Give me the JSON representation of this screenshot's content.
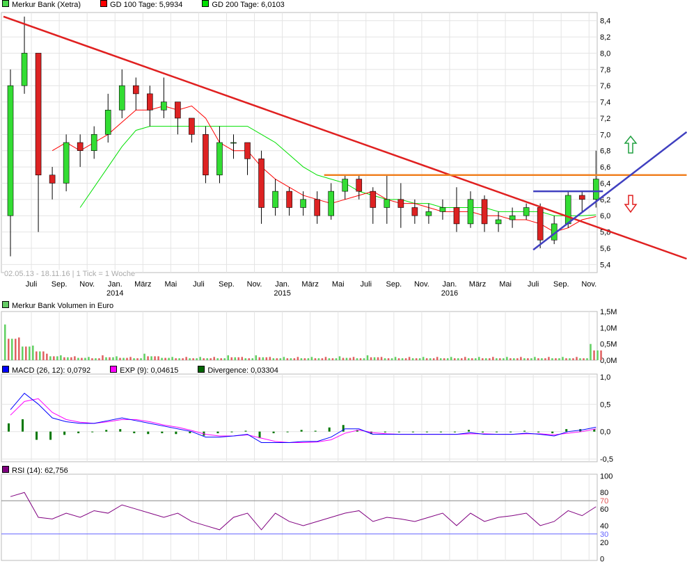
{
  "legend": {
    "price": [
      {
        "label": "Merkur Bank (Xetra)",
        "color": "#4cd84c"
      },
      {
        "label": "GD 100 Tage: 5,9934",
        "color": "#ff0000"
      },
      {
        "label": "GD 200 Tage: 6,0103",
        "color": "#00e000"
      }
    ],
    "volume": [
      {
        "label": "Merkur Bank Volumen in Euro",
        "color": "#66cc66"
      }
    ],
    "macd": [
      {
        "label": "MACD (26, 12): 0,0792",
        "color": "#0000ff"
      },
      {
        "label": "EXP (9): 0,04615",
        "color": "#ff00ff"
      },
      {
        "label": "Divergence: 0,03304",
        "color": "#006600"
      }
    ],
    "rsi": [
      {
        "label": "RSI (14): 62,756",
        "color": "#800080"
      }
    ]
  },
  "range_label": "02.05.13 - 18.11.16",
  "tick_label": "1 Tick = 1 Woche",
  "chart_data": [
    {
      "type": "candlestick",
      "x_months": [
        "2013-05",
        "2013-06",
        "2013-07",
        "2013-08",
        "2013-09",
        "2013-10",
        "2013-11",
        "2013-12",
        "2014-01",
        "2014-02",
        "2014-03",
        "2014-04",
        "2014-05",
        "2014-06",
        "2014-07",
        "2014-08",
        "2014-09",
        "2014-10",
        "2014-11",
        "2014-12",
        "2015-01",
        "2015-02",
        "2015-03",
        "2015-04",
        "2015-05",
        "2015-06",
        "2015-07",
        "2015-08",
        "2015-09",
        "2015-10",
        "2015-11",
        "2015-12",
        "2016-01",
        "2016-02",
        "2016-03",
        "2016-04",
        "2016-05",
        "2016-06",
        "2016-07",
        "2016-08",
        "2016-09",
        "2016-10",
        "2016-11"
      ],
      "open": [
        6.0,
        7.6,
        8.0,
        6.5,
        6.4,
        6.9,
        6.8,
        7.0,
        7.3,
        7.6,
        7.5,
        7.3,
        7.4,
        7.2,
        7.0,
        6.5,
        6.9,
        6.9,
        6.7,
        6.1,
        6.3,
        6.1,
        6.2,
        6.0,
        6.3,
        6.45,
        6.3,
        6.1,
        6.2,
        6.1,
        6.0,
        6.05,
        6.1,
        5.9,
        6.2,
        5.9,
        5.95,
        6.0,
        6.1,
        5.7,
        5.9,
        6.25,
        6.2
      ],
      "close": [
        7.6,
        8.0,
        6.5,
        6.4,
        6.9,
        6.8,
        7.0,
        7.3,
        7.6,
        7.5,
        7.3,
        7.4,
        7.2,
        7.0,
        6.5,
        6.9,
        6.9,
        6.7,
        6.1,
        6.3,
        6.1,
        6.2,
        6.0,
        6.3,
        6.45,
        6.3,
        6.1,
        6.2,
        6.1,
        6.0,
        6.05,
        6.1,
        5.9,
        6.2,
        5.9,
        5.95,
        6.0,
        6.1,
        5.7,
        5.9,
        6.25,
        6.2,
        6.45
      ],
      "high": [
        7.8,
        8.45,
        8.0,
        6.6,
        7.0,
        7.0,
        7.1,
        7.5,
        7.8,
        7.7,
        7.6,
        7.7,
        7.4,
        7.2,
        7.1,
        7.1,
        7.0,
        6.9,
        6.8,
        6.45,
        6.35,
        6.3,
        6.3,
        6.4,
        6.5,
        6.5,
        6.35,
        6.5,
        6.4,
        6.2,
        6.15,
        6.2,
        6.35,
        6.3,
        6.25,
        6.05,
        6.1,
        6.15,
        6.15,
        6.0,
        6.3,
        6.3,
        6.8
      ],
      "low": [
        5.5,
        7.5,
        5.8,
        6.2,
        6.3,
        6.6,
        6.7,
        6.9,
        7.2,
        7.3,
        7.1,
        7.2,
        7.0,
        6.9,
        6.4,
        6.4,
        6.7,
        6.5,
        5.9,
        6.0,
        6.0,
        6.0,
        5.9,
        5.95,
        6.2,
        6.2,
        5.9,
        5.9,
        5.85,
        5.9,
        5.9,
        5.95,
        5.8,
        5.85,
        5.8,
        5.8,
        5.85,
        5.95,
        5.6,
        5.65,
        5.85,
        6.05,
        6.1
      ],
      "gd100": [
        null,
        null,
        null,
        6.8,
        6.9,
        6.8,
        6.9,
        7.0,
        7.15,
        7.3,
        7.3,
        7.35,
        7.3,
        7.35,
        7.2,
        6.9,
        6.8,
        6.8,
        6.6,
        6.45,
        6.35,
        6.25,
        6.2,
        6.15,
        6.2,
        6.25,
        6.3,
        6.2,
        6.15,
        6.15,
        6.1,
        6.05,
        6.05,
        6.05,
        6.0,
        6.0,
        5.95,
        5.95,
        5.9,
        5.8,
        5.85,
        5.95,
        5.99
      ],
      "gd200": [
        null,
        null,
        null,
        null,
        null,
        6.1,
        6.35,
        6.6,
        6.85,
        7.05,
        7.1,
        7.1,
        7.1,
        7.1,
        7.1,
        7.1,
        7.1,
        7.1,
        7.0,
        6.9,
        6.75,
        6.6,
        6.5,
        6.45,
        6.4,
        6.3,
        6.25,
        6.2,
        6.2,
        6.15,
        6.15,
        6.1,
        6.1,
        6.1,
        6.1,
        6.05,
        6.05,
        6.05,
        6.05,
        6.0,
        6.0,
        6.0,
        6.01
      ],
      "trendlines": [
        {
          "color": "#e02020",
          "from": [
            "2013-05",
            8.45
          ],
          "to": [
            "2017-06",
            5.47
          ]
        },
        {
          "color": "#f08020",
          "from": [
            "2015-04",
            6.5
          ],
          "to": [
            "2017-06",
            6.5
          ]
        },
        {
          "color": "#4040c0",
          "from": [
            "2016-07",
            6.3
          ],
          "to": [
            "2016-12",
            6.3
          ]
        },
        {
          "color": "#4040c0",
          "from": [
            "2016-07",
            5.58
          ],
          "to": [
            "2017-06",
            7.03
          ]
        }
      ],
      "yticks": [
        "8,4",
        "8,2",
        "8,0",
        "7,8",
        "7,6",
        "7,4",
        "7,2",
        "7,0",
        "6,8",
        "6,6",
        "6,4",
        "6,2",
        "6,0",
        "5,8",
        "5,6",
        "5,4"
      ],
      "ylim": [
        5.3,
        8.5
      ],
      "xticks": [
        "Juli",
        "Sep.",
        "Nov.",
        "Jan.",
        "März",
        "Mai",
        "Juli",
        "Sep.",
        "Nov.",
        "Jan.",
        "März",
        "Mai",
        "Juli",
        "Sep.",
        "Nov.",
        "Jan.",
        "März",
        "Mai",
        "Juli",
        "Sep.",
        "Nov."
      ],
      "years": [
        "2014",
        "2015",
        "2016"
      ],
      "arrows": [
        {
          "dir": "up",
          "color": "#20a040"
        },
        {
          "dir": "down",
          "color": "#e02020"
        }
      ]
    },
    {
      "type": "bar",
      "name": "volume",
      "ylim": [
        0,
        1.5
      ],
      "yticks": [
        "1,5M",
        "1,0M",
        "0,5M",
        "0,0M"
      ],
      "values": [
        1.1,
        0.7,
        0.45,
        0.2,
        0.15,
        0.12,
        0.1,
        0.15,
        0.12,
        0.1,
        0.2,
        0.12,
        0.1,
        0.1,
        0.1,
        0.1,
        0.15,
        0.1,
        0.15,
        0.1,
        0.1,
        0.1,
        0.1,
        0.1,
        0.12,
        0.1,
        0.15,
        0.1,
        0.1,
        0.1,
        0.1,
        0.1,
        0.1,
        0.1,
        0.1,
        0.1,
        0.1,
        0.1,
        0.1,
        0.1,
        0.1,
        0.1,
        0.5
      ]
    },
    {
      "type": "line",
      "name": "macd",
      "ylim": [
        -0.5,
        1.0
      ],
      "yticks": [
        "1,0",
        "0,5",
        "0,0",
        "-0,5"
      ],
      "macd": [
        0.4,
        0.7,
        0.5,
        0.25,
        0.18,
        0.15,
        0.15,
        0.2,
        0.25,
        0.2,
        0.15,
        0.1,
        0.05,
        0.0,
        -0.1,
        -0.1,
        -0.08,
        -0.05,
        -0.2,
        -0.2,
        -0.2,
        -0.18,
        -0.18,
        -0.1,
        0.05,
        0.05,
        -0.05,
        -0.05,
        -0.05,
        -0.05,
        -0.05,
        -0.05,
        -0.05,
        -0.02,
        -0.05,
        -0.05,
        -0.05,
        -0.03,
        -0.05,
        -0.08,
        0.0,
        0.03,
        0.08
      ],
      "exp": [
        0.3,
        0.55,
        0.6,
        0.35,
        0.22,
        0.17,
        0.15,
        0.18,
        0.22,
        0.22,
        0.18,
        0.12,
        0.08,
        0.02,
        -0.05,
        -0.08,
        -0.08,
        -0.06,
        -0.12,
        -0.18,
        -0.2,
        -0.2,
        -0.19,
        -0.15,
        -0.03,
        0.03,
        -0.02,
        -0.04,
        -0.05,
        -0.05,
        -0.05,
        -0.05,
        -0.05,
        -0.04,
        -0.04,
        -0.05,
        -0.05,
        -0.04,
        -0.04,
        -0.06,
        -0.03,
        0.0,
        0.05
      ]
    },
    {
      "type": "line",
      "name": "rsi",
      "ylim": [
        0,
        100
      ],
      "yticks": [
        "100",
        "80",
        "60",
        "40",
        "20",
        "0"
      ],
      "levels": [
        70,
        30
      ],
      "values": [
        75,
        80,
        50,
        48,
        55,
        50,
        58,
        55,
        65,
        60,
        55,
        50,
        55,
        45,
        40,
        35,
        50,
        55,
        35,
        55,
        45,
        40,
        45,
        50,
        55,
        58,
        45,
        50,
        48,
        45,
        50,
        55,
        40,
        55,
        45,
        50,
        52,
        55,
        40,
        45,
        58,
        52,
        62.8
      ]
    }
  ]
}
